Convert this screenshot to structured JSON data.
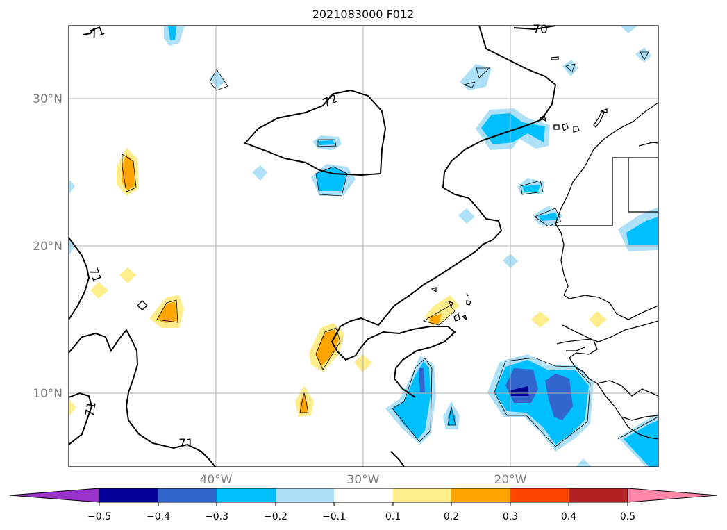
{
  "title": "2021083000 F012",
  "map": {
    "latitude_labels": [
      "30°N",
      "20°N",
      "10°N"
    ],
    "longitude_labels": [
      "40°W",
      "30°W",
      "20°W"
    ],
    "contour_labels": [
      "71",
      "70",
      "72",
      "71",
      "71",
      "71"
    ],
    "grid": true
  },
  "colorbar": {
    "tick_labels": [
      "−0.5",
      "−0.4",
      "−0.3",
      "−0.2",
      "−0.1",
      "0.1",
      "0.2",
      "0.3",
      "0.4",
      "0.5"
    ],
    "colors": {
      "under": "#9933cc",
      "bins": [
        "#000099",
        "#3366cc",
        "#00bfff",
        "#aee0f8",
        "#ffffff",
        "#ffec8b",
        "#ffa500",
        "#ff4500",
        "#b22222",
        "#ff88aa"
      ],
      "over": "#ff88aa"
    }
  }
}
